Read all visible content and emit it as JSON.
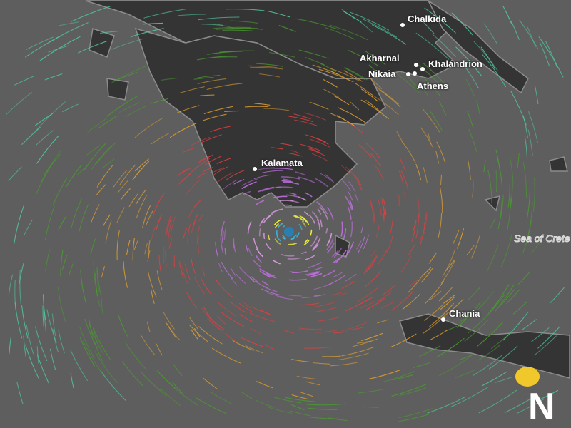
{
  "map": {
    "cities": [
      {
        "name": "Chalkida"
      },
      {
        "name": "Akharnai"
      },
      {
        "name": "Khalándrion"
      },
      {
        "name": "Nikaia"
      },
      {
        "name": "Athens"
      },
      {
        "name": "Kalamata"
      },
      {
        "name": "Chania"
      }
    ],
    "sea_label": "Sea of Crete",
    "colors": {
      "sea": "#5e5e5e",
      "land": "#343434",
      "border": "#9a9a9a"
    }
  },
  "logo": {
    "letter": "N",
    "accent": "#f1c82b"
  }
}
